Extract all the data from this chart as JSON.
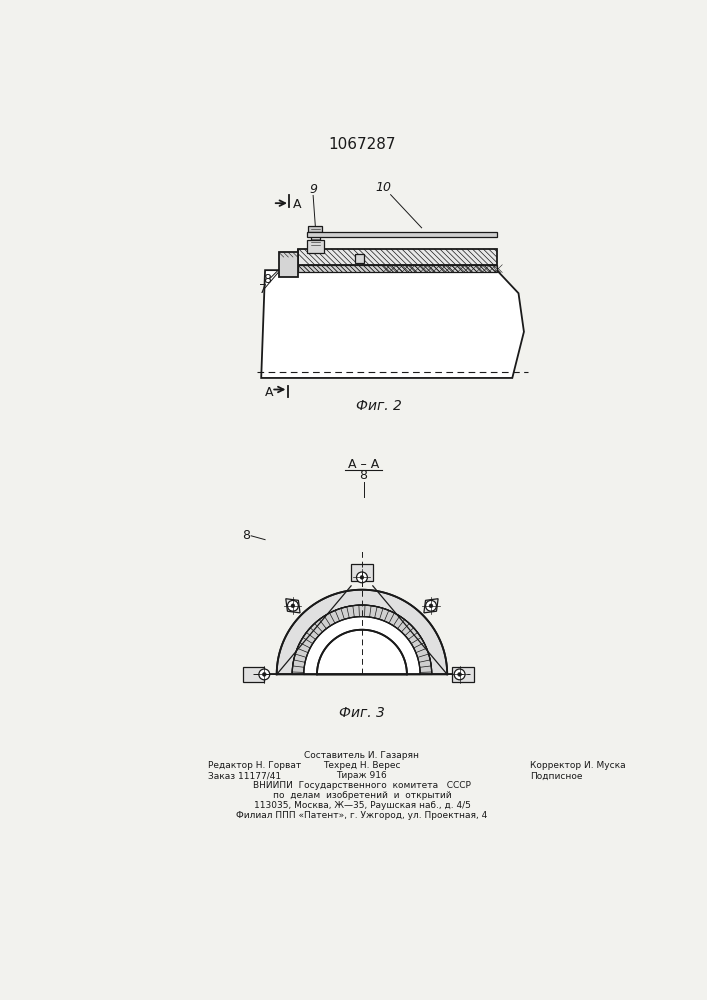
{
  "title": "1067287",
  "bg_color": "#f2f2ee",
  "black": "#1a1a1a",
  "footer_col1_lines": [
    "Редактор Н. Горват",
    "Заказ 11177/41"
  ],
  "footer_col2_lines": [
    "Составитель И. Газарян",
    "Техред Н. Верес",
    "Тираж 916",
    "ВНИИПИ  Государственного  комитета   СССР",
    "по  делам  изобретений  и  открытий",
    "113035, Москва, Ж—35, Раушская наб., д. 4/5",
    "Филиал ППП «Патент», г. Ужгород, ул. Проектная, 4"
  ],
  "footer_col3_lines": [
    "Корректор И. Муска",
    "Подписное"
  ]
}
